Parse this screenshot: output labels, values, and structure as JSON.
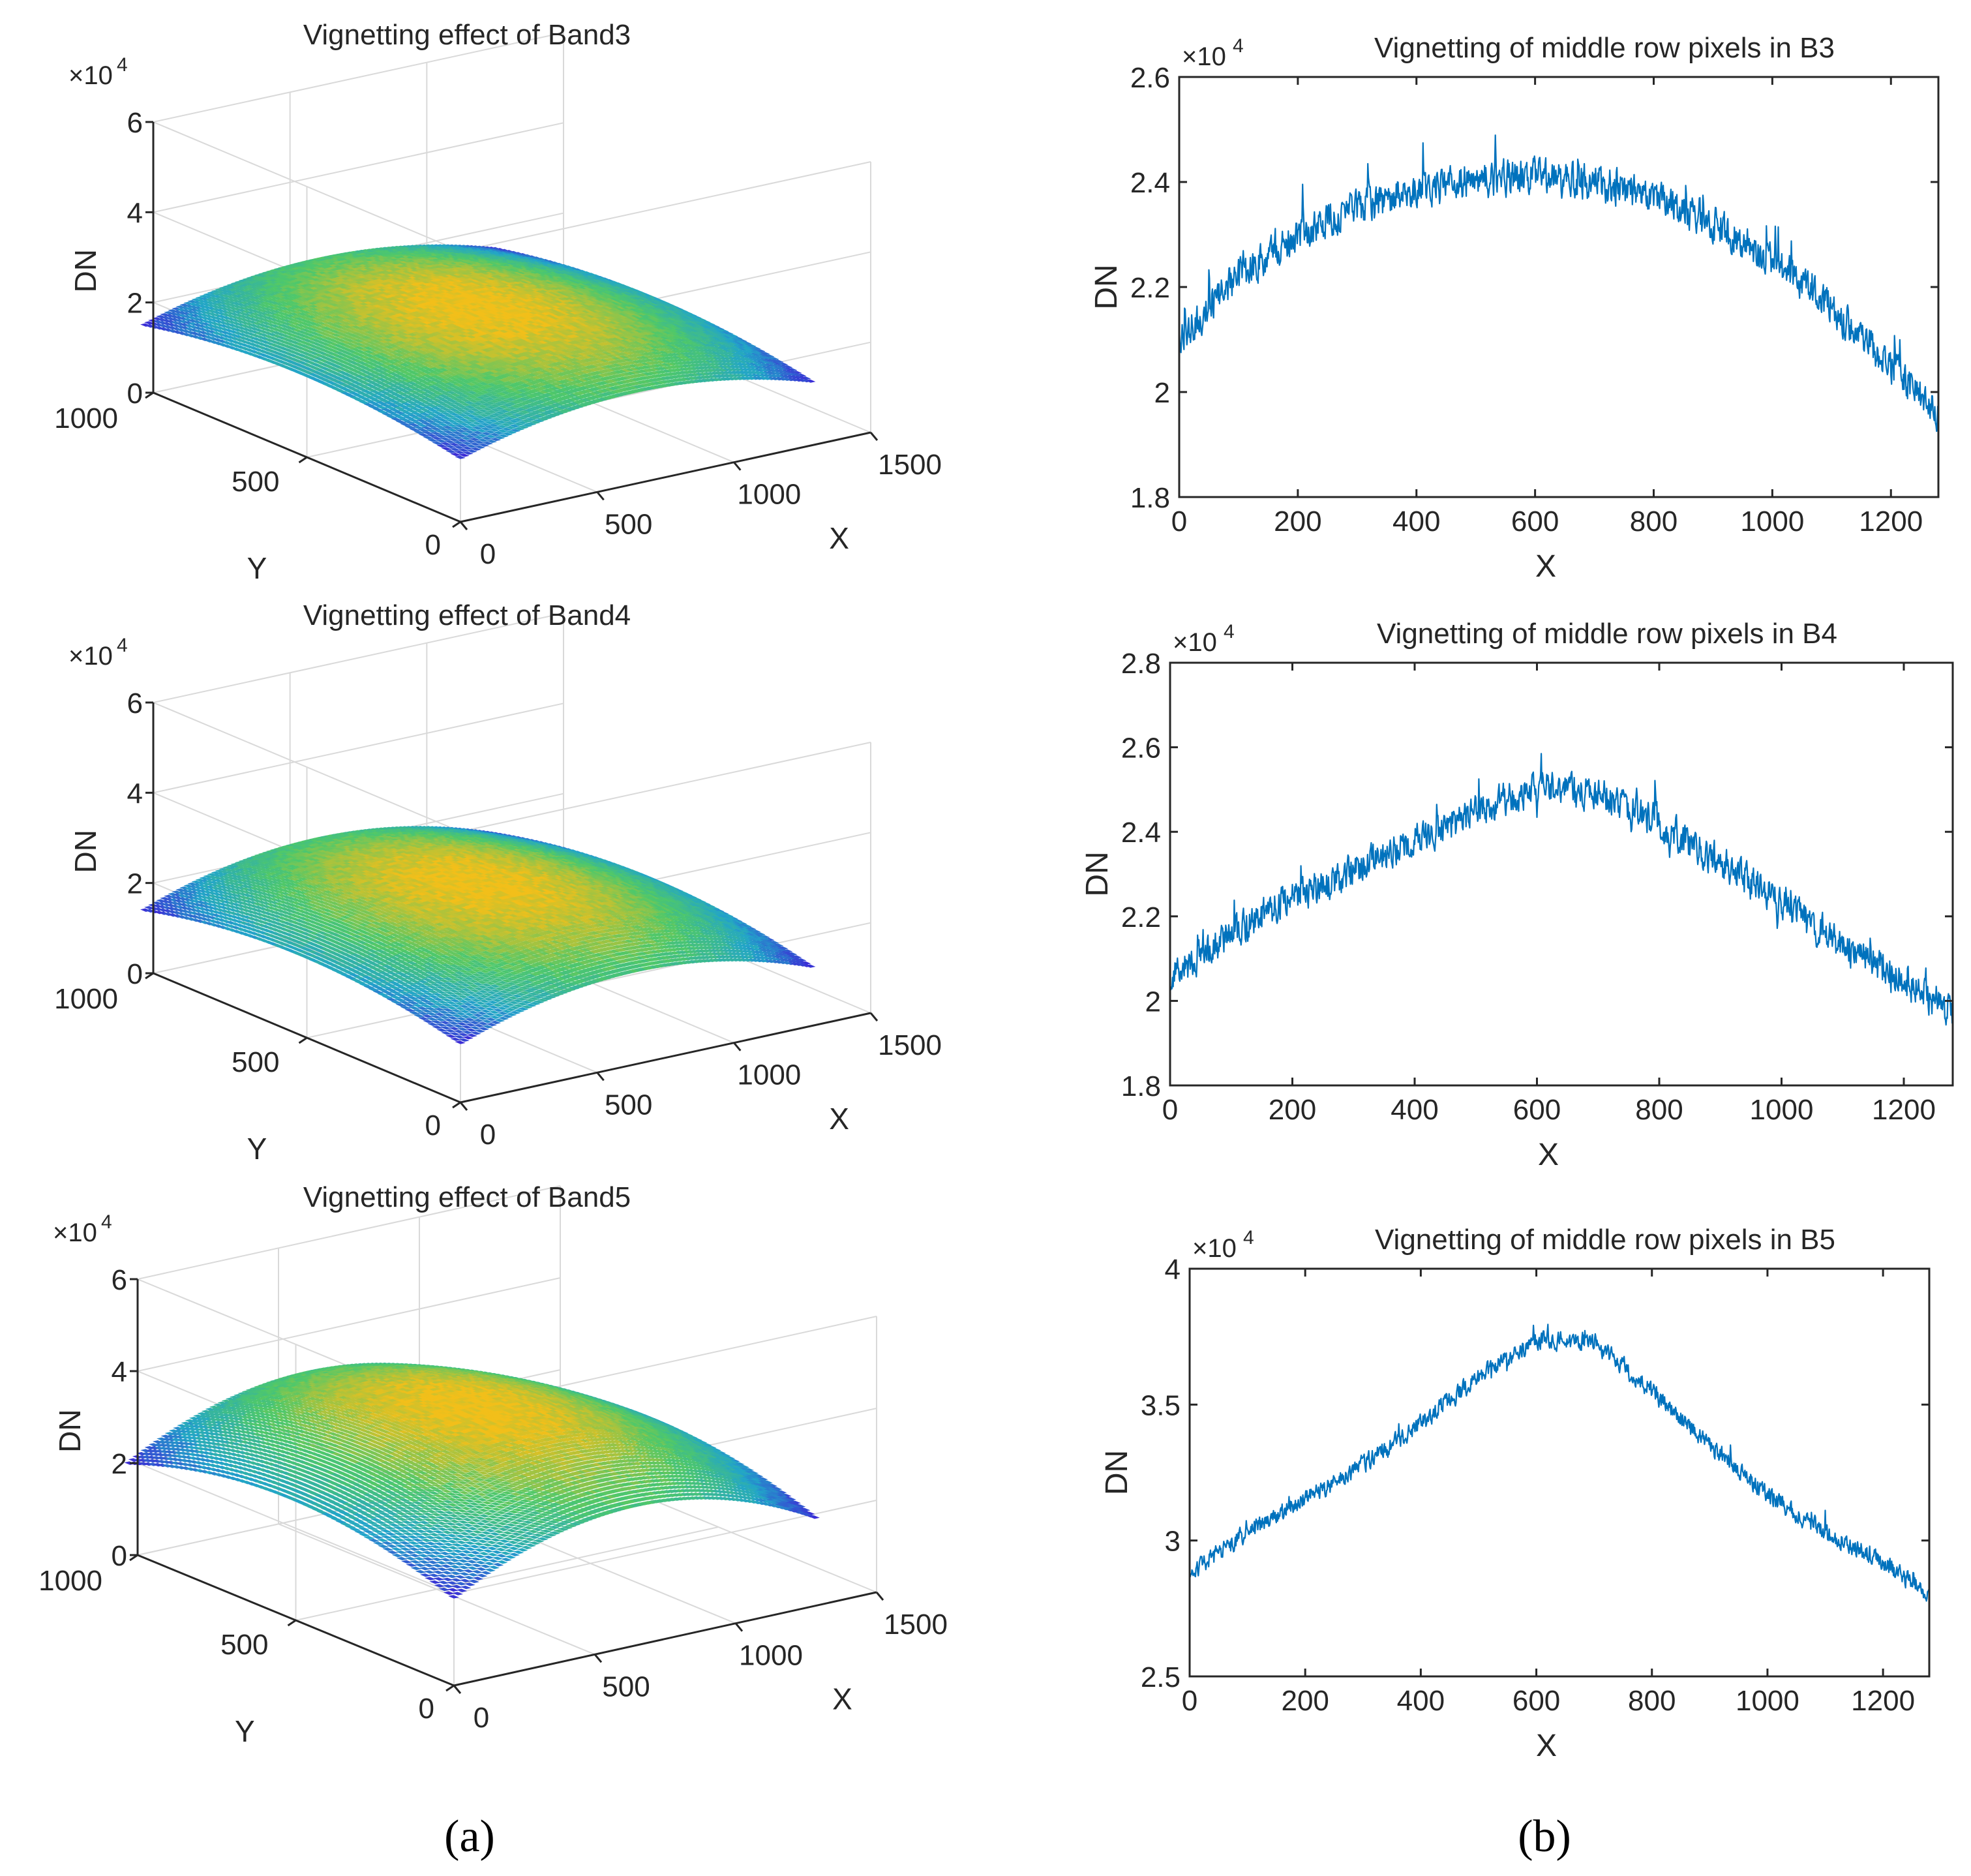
{
  "figure": {
    "panel_a_label": "(a)",
    "panel_b_label": "(b)"
  },
  "colors": {
    "line": "#0072BD",
    "axis": "#262626",
    "grid": "#d9d9d9",
    "surface_low": "#3b2dd6",
    "surface_mid": "#22a5c9",
    "surface_high_mid": "#4fc86a",
    "surface_peak": "#f2bf1a"
  },
  "chart_data": [
    {
      "id": "surf-b3",
      "type": "surface3d",
      "title": "Vignetting effect of Band3",
      "xlabel": "X",
      "ylabel": "Y",
      "zlabel": "DN",
      "xlim": [
        0,
        1500
      ],
      "ylim": [
        0,
        1000
      ],
      "zlim": [
        0,
        60000
      ],
      "x_ticks": [
        "0",
        "500",
        "1000",
        "1500"
      ],
      "y_ticks": [
        "0",
        "500",
        "1000"
      ],
      "z_ticks": [
        "0",
        "2",
        "4",
        "6"
      ],
      "z_multiplier": "×10",
      "z_exponent": "4",
      "data_extent": {
        "x": [
          0,
          1280
        ],
        "y": [
          0,
          1024
        ]
      },
      "center_value": 24000,
      "min_corner_value": 14000,
      "grid": true
    },
    {
      "id": "surf-b4",
      "type": "surface3d",
      "title": "Vignetting effect of Band4",
      "xlabel": "X",
      "ylabel": "Y",
      "zlabel": "DN",
      "xlim": [
        0,
        1500
      ],
      "ylim": [
        0,
        1000
      ],
      "zlim": [
        0,
        60000
      ],
      "x_ticks": [
        "0",
        "500",
        "1000",
        "1500"
      ],
      "y_ticks": [
        "0",
        "500",
        "1000"
      ],
      "z_ticks": [
        "0",
        "2",
        "4",
        "6"
      ],
      "z_multiplier": "×10",
      "z_exponent": "4",
      "data_extent": {
        "x": [
          0,
          1280
        ],
        "y": [
          0,
          1024
        ]
      },
      "center_value": 25000,
      "min_corner_value": 13000,
      "grid": true
    },
    {
      "id": "surf-b5",
      "type": "surface3d",
      "title": "Vignetting effect of Band5",
      "xlabel": "X",
      "ylabel": "Y",
      "zlabel": "DN",
      "xlim": [
        0,
        1500
      ],
      "ylim": [
        0,
        1000
      ],
      "zlim": [
        0,
        60000
      ],
      "x_ticks": [
        "0",
        "500",
        "1000",
        "1500"
      ],
      "y_ticks": [
        "0",
        "500",
        "1000"
      ],
      "z_ticks": [
        "0",
        "2",
        "4",
        "6"
      ],
      "z_multiplier": "×10",
      "z_exponent": "4",
      "data_extent": {
        "x": [
          0,
          1280
        ],
        "y": [
          0,
          1024
        ]
      },
      "center_value": 37000,
      "min_corner_value": 19000,
      "grid": true
    },
    {
      "id": "line-b3",
      "type": "line",
      "title": "Vignetting of middle row pixels in B3",
      "xlabel": "X",
      "ylabel": "DN",
      "xlim": [
        0,
        1280
      ],
      "ylim": [
        18000,
        26000
      ],
      "x_ticks": [
        0,
        200,
        400,
        600,
        800,
        1000,
        1200
      ],
      "x_tick_labels": [
        "0",
        "200",
        "400",
        "600",
        "800",
        "1000",
        "1200"
      ],
      "y_ticks": [
        18000,
        20000,
        22000,
        24000,
        26000
      ],
      "y_tick_labels": [
        "1.8",
        "2",
        "2.2",
        "2.4",
        "2.6"
      ],
      "y_multiplier": "×10",
      "y_exponent": "4",
      "trend_x": [
        0,
        100,
        200,
        300,
        400,
        500,
        600,
        700,
        800,
        900,
        1000,
        1100,
        1200,
        1280
      ],
      "trend_y": [
        21000,
        22200,
        23000,
        23500,
        23850,
        24050,
        24100,
        24000,
        23700,
        23200,
        22500,
        21600,
        20500,
        19600
      ],
      "noise_amplitude": 450,
      "n_points": 1280
    },
    {
      "id": "line-b4",
      "type": "line",
      "title": "Vignetting of middle row pixels in B4",
      "xlabel": "X",
      "ylabel": "DN",
      "xlim": [
        0,
        1280
      ],
      "ylim": [
        18000,
        28000
      ],
      "x_ticks": [
        0,
        200,
        400,
        600,
        800,
        1000,
        1200
      ],
      "x_tick_labels": [
        "0",
        "200",
        "400",
        "600",
        "800",
        "1000",
        "1200"
      ],
      "y_ticks": [
        18000,
        20000,
        22000,
        24000,
        26000,
        28000
      ],
      "y_tick_labels": [
        "1.8",
        "2",
        "2.2",
        "2.4",
        "2.6",
        "2.8"
      ],
      "y_multiplier": "×10",
      "y_exponent": "4",
      "trend_x": [
        0,
        100,
        200,
        300,
        400,
        500,
        600,
        700,
        800,
        900,
        1000,
        1100,
        1200,
        1280
      ],
      "trend_y": [
        20500,
        21600,
        22400,
        23100,
        23800,
        24500,
        25000,
        24900,
        24200,
        23300,
        22300,
        21300,
        20500,
        19700
      ],
      "noise_amplitude": 550,
      "n_points": 1280
    },
    {
      "id": "line-b5",
      "type": "line",
      "title": "Vignetting of middle row pixels in B5",
      "xlabel": "X",
      "ylabel": "DN",
      "xlim": [
        0,
        1280
      ],
      "ylim": [
        25000,
        40000
      ],
      "x_ticks": [
        0,
        200,
        400,
        600,
        800,
        1000,
        1200
      ],
      "x_tick_labels": [
        "0",
        "200",
        "400",
        "600",
        "800",
        "1000",
        "1200"
      ],
      "y_ticks": [
        25000,
        30000,
        35000,
        40000
      ],
      "y_tick_labels": [
        "2.5",
        "3",
        "3.5",
        "4"
      ],
      "y_multiplier": "×10",
      "y_exponent": "4",
      "trend_x": [
        0,
        100,
        200,
        300,
        400,
        500,
        600,
        700,
        800,
        900,
        1000,
        1100,
        1200,
        1280
      ],
      "trend_y": [
        28800,
        30300,
        31500,
        32800,
        34300,
        36000,
        37400,
        37300,
        35500,
        33500,
        31700,
        30300,
        29200,
        28000
      ],
      "noise_amplitude": 450,
      "n_points": 1280
    }
  ]
}
